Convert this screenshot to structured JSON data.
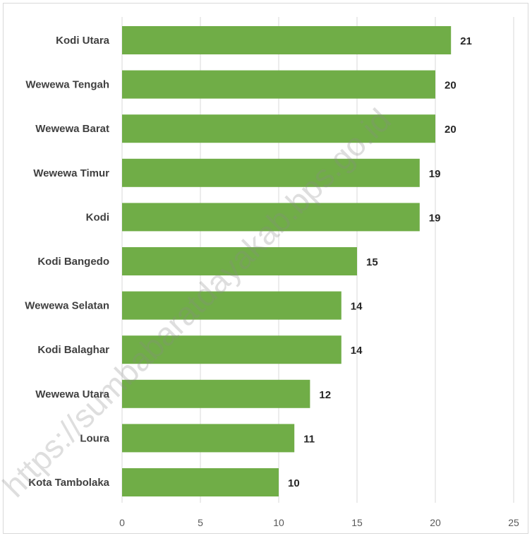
{
  "watermark": "https://sumbabaratdayakab.bps.go.id",
  "colors": {
    "bar": "#70ad47",
    "grid": "#d9d9d9"
  },
  "chart_data": {
    "type": "bar",
    "orientation": "horizontal",
    "categories": [
      "Kodi Utara",
      "Wewewa Tengah",
      "Wewewa Barat",
      "Wewewa Timur",
      "Kodi",
      "Kodi Bangedo",
      "Wewewa Selatan",
      "Kodi Balaghar",
      "Wewewa Utara",
      "Loura",
      "Kota Tambolaka"
    ],
    "values": [
      21,
      20,
      20,
      19,
      19,
      15,
      14,
      14,
      12,
      11,
      10
    ],
    "xlim": [
      0,
      25
    ],
    "xticks": [
      0,
      5,
      10,
      15,
      20,
      25
    ],
    "grid": true,
    "data_labels": true
  }
}
